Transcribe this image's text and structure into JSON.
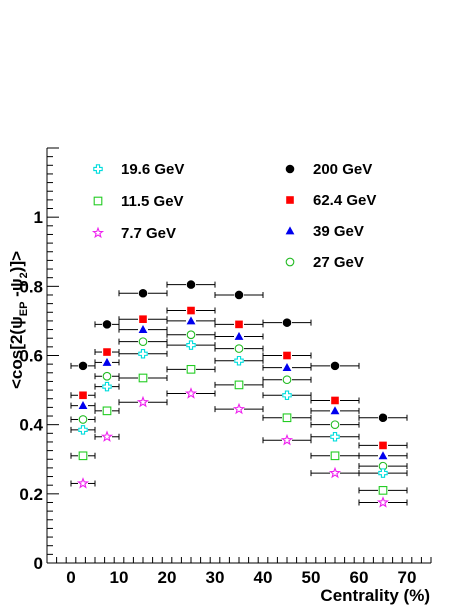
{
  "chart_data": {
    "type": "scatter",
    "xlabel": "Centrality (%)",
    "ylabel": {
      "main": "<cos[2(ψ",
      "sub1": "EP",
      "mid": " -ψ",
      "sub2": "2",
      "end": ")]>"
    },
    "xlim": [
      -5,
      75
    ],
    "ylim": [
      0,
      1.2
    ],
    "xticks": [
      0,
      10,
      20,
      30,
      40,
      50,
      60,
      70
    ],
    "yticks": [
      0,
      0.2,
      0.4,
      0.6,
      0.8,
      1
    ],
    "ytick_labels": [
      "0",
      "0.2",
      "0.4",
      "0.6",
      "0.8",
      "1"
    ],
    "x_error": [
      2.5,
      2.5,
      5,
      5,
      5,
      5,
      5,
      5
    ],
    "x": [
      2.5,
      7.5,
      15,
      25,
      35,
      45,
      55,
      65
    ],
    "series": [
      {
        "name": "200 GeV",
        "marker": "filled-circle",
        "color": "#000000",
        "offset": 0.0,
        "values": [
          0.57,
          0.69,
          0.78,
          0.805,
          0.775,
          0.695,
          0.57,
          0.42
        ]
      },
      {
        "name": "62.4 GeV",
        "marker": "filled-square",
        "color": "#ff0000",
        "offset": 0.0,
        "values": [
          0.485,
          0.61,
          0.705,
          0.73,
          0.69,
          0.6,
          0.47,
          0.34
        ]
      },
      {
        "name": "39 GeV",
        "marker": "filled-triangle",
        "color": "#0000ee",
        "offset": 0.0,
        "values": [
          0.455,
          0.58,
          0.675,
          0.7,
          0.655,
          0.565,
          0.44,
          0.31
        ]
      },
      {
        "name": "27 GeV",
        "marker": "open-circle",
        "color": "#22bb22",
        "offset": 0.0,
        "values": [
          0.415,
          0.54,
          0.64,
          0.66,
          0.62,
          0.53,
          0.4,
          0.28
        ]
      },
      {
        "name": "19.6 GeV",
        "marker": "open-cross",
        "color": "#00dddd",
        "offset": 0.0,
        "values": [
          0.385,
          0.51,
          0.605,
          0.63,
          0.585,
          0.485,
          0.365,
          0.26
        ]
      },
      {
        "name": "11.5 GeV",
        "marker": "open-square",
        "color": "#22cc22",
        "offset": 0.0,
        "values": [
          0.31,
          0.44,
          0.535,
          0.56,
          0.515,
          0.42,
          0.31,
          0.21
        ]
      },
      {
        "name": "7.7 GeV",
        "marker": "open-star",
        "color": "#ee22ee",
        "offset": 0.0,
        "values": [
          0.23,
          0.365,
          0.465,
          0.49,
          0.445,
          0.355,
          0.26,
          0.175
        ]
      }
    ],
    "legend": {
      "placement": "top",
      "left_column": [
        "19.6 GeV",
        "11.5 GeV",
        "7.7 GeV"
      ],
      "right_column": [
        "200 GeV",
        "62.4 GeV",
        "39 GeV",
        "27 GeV"
      ]
    }
  }
}
